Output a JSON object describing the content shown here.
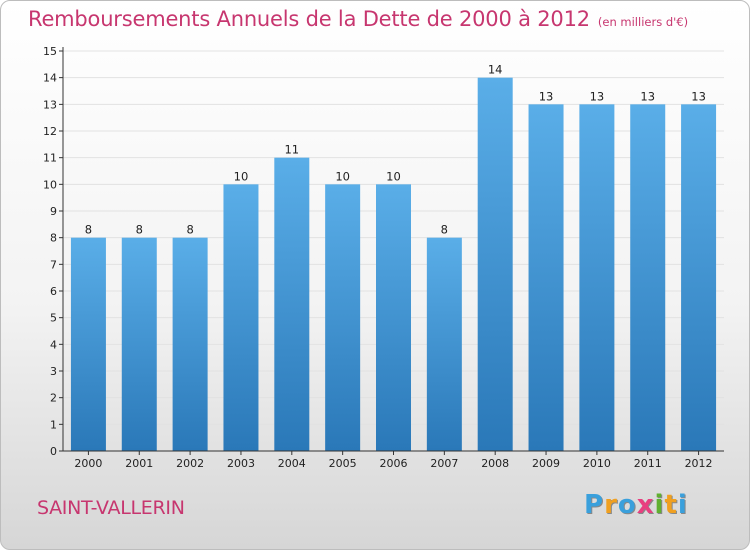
{
  "title": "Remboursements Annuels de la Dette de 2000 à 2012",
  "unit": "(en milliers d'€)",
  "place": "SAINT-VALLERIN",
  "logo": {
    "letters": [
      "P",
      "r",
      "o",
      "x",
      "i",
      "t",
      "i"
    ],
    "colors": [
      "#3aa0dc",
      "#f0a020",
      "#3aa0dc",
      "#e84080",
      "#60b030",
      "#f0a020",
      "#3aa0dc"
    ]
  },
  "chart_data": {
    "type": "bar",
    "categories": [
      "2000",
      "2001",
      "2002",
      "2003",
      "2004",
      "2005",
      "2006",
      "2007",
      "2008",
      "2009",
      "2010",
      "2011",
      "2012"
    ],
    "values": [
      8,
      8,
      8,
      10,
      11,
      10,
      10,
      8,
      14,
      13,
      13,
      13,
      13
    ],
    "data_labels": [
      "8",
      "8",
      "8",
      "10",
      "11",
      "10",
      "10",
      "8",
      "14",
      "13",
      "13",
      "13",
      "13"
    ],
    "yticks": [
      "0",
      "1",
      "2",
      "3",
      "4",
      "5",
      "6",
      "7",
      "8",
      "9",
      "10",
      "11",
      "12",
      "13",
      "14",
      "15"
    ],
    "ylim": [
      0,
      15
    ],
    "bar_color_top": "#5aaee8",
    "bar_color_bottom": "#2a78b8"
  }
}
